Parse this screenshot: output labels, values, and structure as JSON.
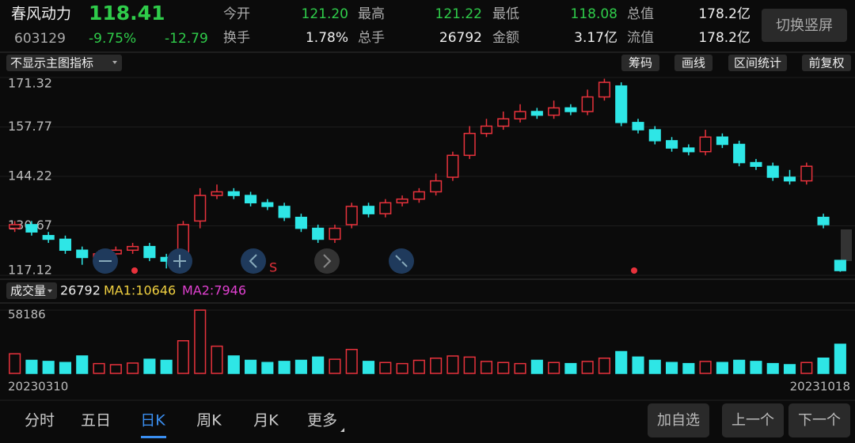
{
  "header": {
    "name": "春风动力",
    "price": "118.41",
    "code": "603129",
    "change_pct": "-9.75%",
    "change": "-12.79",
    "stats": [
      {
        "label": "今开",
        "value": "121.20"
      },
      {
        "label": "最高",
        "value": "121.22"
      },
      {
        "label": "最低",
        "value": "118.08"
      },
      {
        "label": "总值",
        "value": "178.2亿"
      },
      {
        "label": "换手",
        "value": "1.78%"
      },
      {
        "label": "总手",
        "value": "26792"
      },
      {
        "label": "金额",
        "value": "3.17亿"
      },
      {
        "label": "流值",
        "value": "178.2亿"
      }
    ],
    "switch_button": "切换竖屏"
  },
  "toolbar": {
    "indicator": "不显示主图指标",
    "buttons": [
      "筹码",
      "画线",
      "区间统计",
      "前复权"
    ]
  },
  "chart_data": [
    {
      "type": "candlestick",
      "ylim": [
        117.12,
        171.32
      ],
      "yticks": [
        171.32,
        157.77,
        144.22,
        130.67,
        117.12
      ],
      "up_color": "#e8323c",
      "down_color": "#2ee6e6",
      "marker": "S",
      "open": [
        130,
        131,
        128,
        127,
        124,
        122,
        123,
        124,
        125,
        122,
        121,
        132,
        139,
        140,
        139,
        137,
        136,
        133,
        130,
        127,
        131,
        136,
        134,
        137,
        138,
        140,
        144,
        150,
        156,
        158,
        160,
        162,
        161,
        163,
        162,
        166,
        169,
        159,
        157,
        154,
        152,
        151,
        155,
        153,
        148,
        147,
        144,
        143,
        133,
        121.2
      ],
      "high": [
        132,
        132,
        129,
        128,
        125,
        124,
        125,
        126,
        126,
        123,
        132,
        141,
        142,
        141,
        140,
        138,
        137,
        134,
        131,
        131,
        137,
        137,
        138,
        139,
        141,
        145,
        151,
        158,
        160,
        162,
        164,
        163,
        165,
        164,
        168,
        171,
        170,
        160,
        158,
        155,
        153,
        157,
        156,
        154,
        149,
        148,
        146,
        148,
        134,
        121.22
      ],
      "low": [
        129,
        128,
        126,
        123,
        120,
        121,
        122,
        123,
        121,
        119,
        120,
        130,
        138,
        138,
        136,
        135,
        132,
        129,
        126,
        126,
        130,
        133,
        133,
        136,
        137,
        139,
        143,
        149,
        155,
        157,
        159,
        160,
        160,
        161,
        161,
        165,
        158,
        156,
        153,
        151,
        150,
        150,
        152,
        147,
        146,
        143,
        142,
        142,
        130,
        118.08
      ],
      "close": [
        131,
        129,
        127,
        124,
        122,
        123,
        124,
        125,
        122,
        121,
        131,
        139,
        140,
        139,
        137,
        136,
        133,
        130,
        127,
        130,
        136,
        134,
        137,
        138,
        140,
        143,
        150,
        156,
        158,
        160,
        162,
        161,
        163,
        162,
        166,
        170,
        159,
        157,
        154,
        152,
        151,
        155,
        153,
        148,
        147,
        144,
        143,
        147,
        131,
        118.41
      ]
    },
    {
      "type": "bar",
      "title": "成交量",
      "ma_labels": [
        {
          "text": "MA1:10646",
          "color": "#f0d040"
        },
        {
          "text": "MA2:7946",
          "color": "#e040d0"
        }
      ],
      "ylim": [
        0,
        58186
      ],
      "yticks": [
        58186
      ],
      "categories": [
        "20230310",
        null,
        null,
        null,
        null,
        null,
        null,
        null,
        null,
        null,
        null,
        null,
        null,
        null,
        null,
        null,
        null,
        null,
        null,
        null,
        null,
        null,
        null,
        null,
        null,
        null,
        null,
        null,
        null,
        null,
        null,
        null,
        null,
        null,
        null,
        null,
        null,
        null,
        null,
        null,
        null,
        null,
        null,
        null,
        null,
        null,
        null,
        null,
        null,
        "20231018"
      ],
      "values": [
        18000,
        12000,
        11000,
        10000,
        16000,
        9000,
        8000,
        9500,
        13000,
        12000,
        30000,
        58186,
        25000,
        16000,
        12000,
        10000,
        11000,
        12000,
        15000,
        13000,
        22000,
        11000,
        10000,
        9000,
        12000,
        14000,
        16000,
        15000,
        11000,
        10000,
        9000,
        12000,
        10000,
        9000,
        11000,
        14000,
        20000,
        15000,
        12000,
        10000,
        9000,
        11000,
        10000,
        12000,
        11000,
        9000,
        8000,
        10000,
        14000,
        26792
      ]
    }
  ],
  "tabs": [
    "分时",
    "五日",
    "日K",
    "周K",
    "月K",
    "更多"
  ],
  "actions": [
    "加自选",
    "上一个",
    "下一个"
  ]
}
